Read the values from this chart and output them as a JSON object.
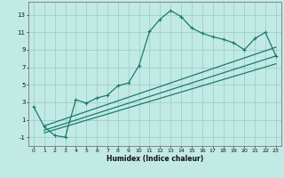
{
  "xlabel": "Humidex (Indice chaleur)",
  "bg_color": "#c2eae4",
  "grid_color": "#9fcfca",
  "line_color": "#1c7a6e",
  "xlim": [
    -0.5,
    23.5
  ],
  "ylim": [
    -2.0,
    14.5
  ],
  "xticks": [
    0,
    1,
    2,
    3,
    4,
    5,
    6,
    7,
    8,
    9,
    10,
    11,
    12,
    13,
    14,
    15,
    16,
    17,
    18,
    19,
    20,
    21,
    22,
    23
  ],
  "yticks": [
    -1,
    1,
    3,
    5,
    7,
    9,
    11,
    13
  ],
  "main_x": [
    0,
    1,
    2,
    3,
    4,
    5,
    6,
    7,
    8,
    9,
    10,
    11,
    12,
    13,
    14,
    15,
    16,
    17,
    18,
    19,
    20,
    21,
    22,
    23
  ],
  "main_y": [
    2.5,
    0.2,
    -0.8,
    -1.0,
    3.3,
    2.9,
    3.5,
    3.8,
    4.9,
    5.2,
    7.2,
    11.1,
    12.5,
    13.5,
    12.8,
    11.5,
    10.9,
    10.5,
    10.2,
    9.8,
    9.0,
    10.3,
    11.0,
    8.3
  ],
  "line1_x": [
    1,
    23
  ],
  "line1_y": [
    -0.2,
    8.3
  ],
  "line2_x": [
    1,
    23
  ],
  "line2_y": [
    0.3,
    9.3
  ],
  "line3_x": [
    1,
    23
  ],
  "line3_y": [
    -0.5,
    7.4
  ]
}
